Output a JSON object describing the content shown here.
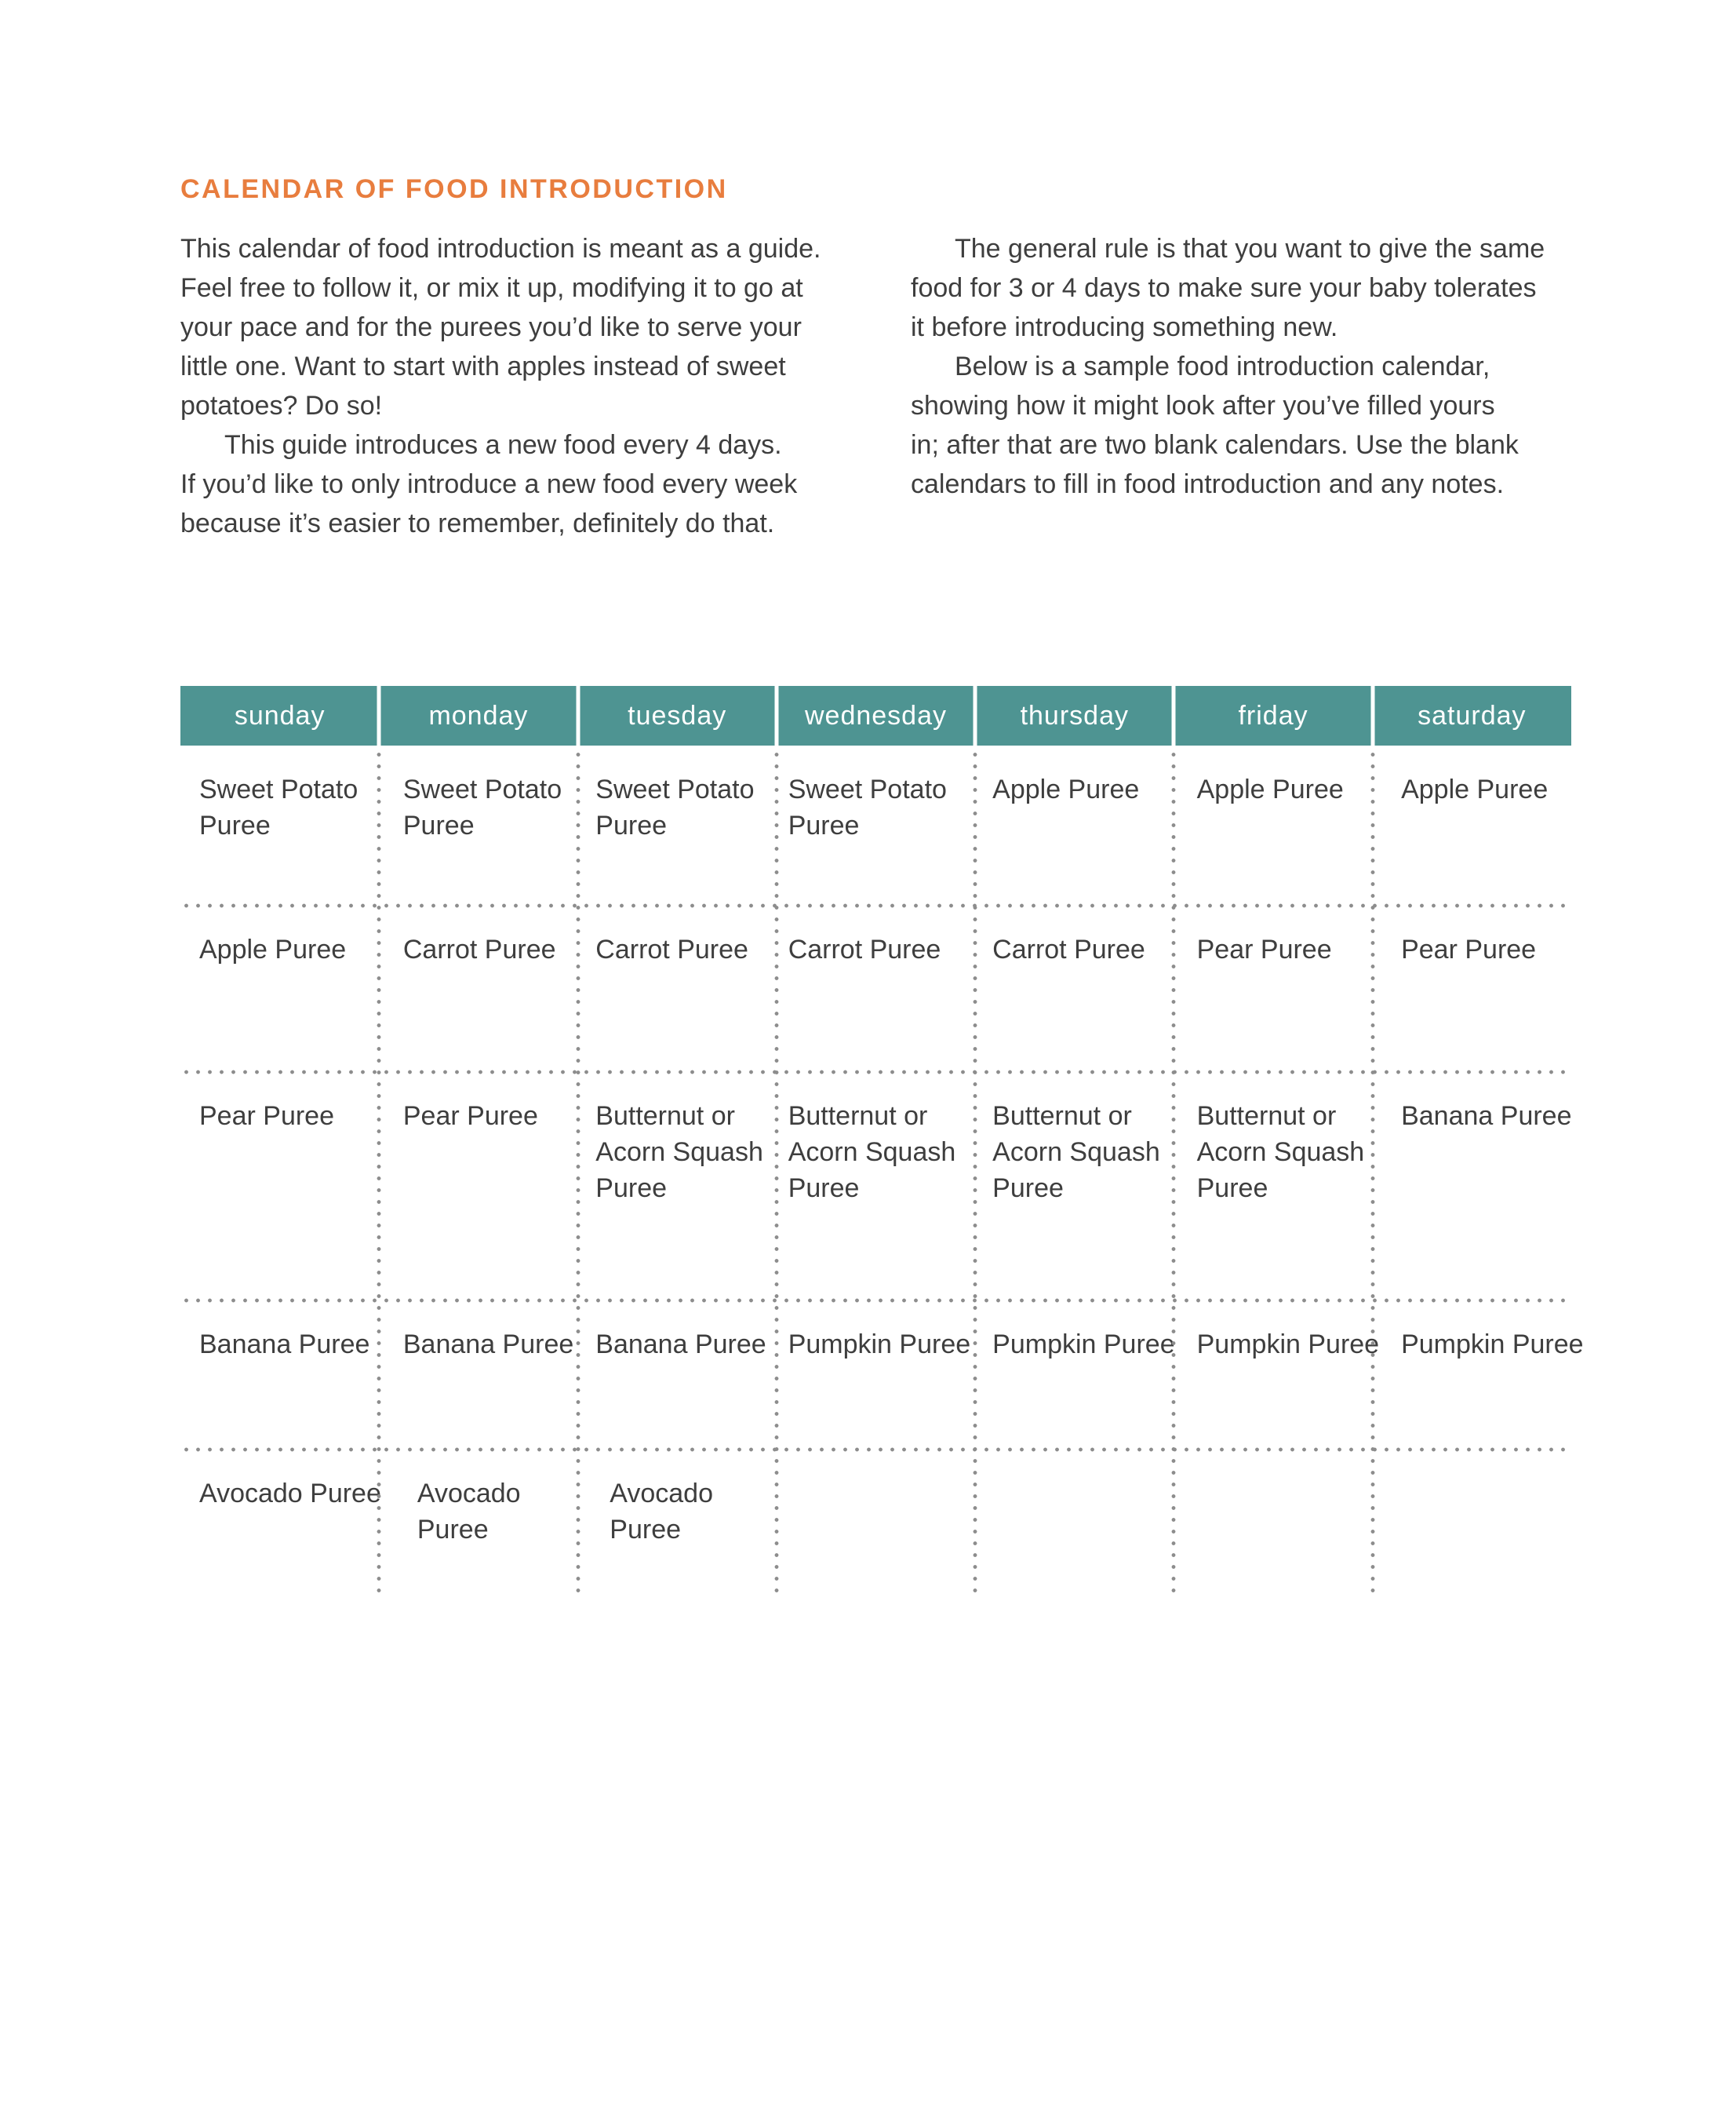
{
  "title": "CALENDAR OF FOOD INTRODUCTION",
  "intro": {
    "left": {
      "p1": "This calendar of food introduction is meant as a guide.\nFeel free to follow it, or mix it up, modifying it to go at\nyour pace and for the purees you’d like to serve your\nlittle one. Want to start with apples instead of sweet\npotatoes? Do so!",
      "p2": "This guide introduces a new food every 4 days.\nIf you’d like to only introduce a new food every week\nbecause it’s easier to remember, definitely do that."
    },
    "right": {
      "p1": "The general rule is that you want to give the same\nfood for 3 or 4 days to make sure your baby tolerates\nit before introducing something new.",
      "p2": "Below is a sample food introduction calendar,\nshowing how it might look after you’ve filled yours\nin; after that are two blank calendars. Use the blank\ncalendars to fill in food introduction and any notes."
    }
  },
  "colors": {
    "accent_orange": "#e87d3e",
    "header_teal": "#4e9492",
    "body_text": "#3e3e3e",
    "dot_gray": "#8d8d8d"
  },
  "calendar": {
    "days": [
      "sunday",
      "monday",
      "tuesday",
      "wednesday",
      "thursday",
      "friday",
      "saturday"
    ],
    "rows": [
      {
        "cells": [
          "Sweet Potato\nPuree",
          "Sweet Potato\nPuree",
          "Sweet Potato\nPuree",
          "Sweet Potato\nPuree",
          "Apple Puree",
          "Apple Puree",
          "Apple Puree"
        ]
      },
      {
        "cells": [
          "Apple Puree",
          "Carrot Puree",
          "Carrot Puree",
          "Carrot Puree",
          "Carrot Puree",
          "Pear Puree",
          "Pear Puree"
        ]
      },
      {
        "cells": [
          "Pear Puree",
          "Pear Puree",
          "Butternut or\nAcorn Squash\nPuree",
          "Butternut or\nAcorn Squash\nPuree",
          "Butternut or\nAcorn Squash\nPuree",
          "Butternut or\nAcorn Squash\nPuree",
          "Banana Puree"
        ]
      },
      {
        "cells": [
          "Banana Puree",
          "Banana Puree",
          "Banana Puree",
          "Pumpkin Puree",
          "Pumpkin Puree",
          "Pumpkin Puree",
          "Pumpkin Puree"
        ]
      },
      {
        "cells": [
          "Avocado Puree",
          "Avocado\nPuree",
          "Avocado\nPuree",
          "",
          "",
          "",
          ""
        ]
      }
    ]
  }
}
